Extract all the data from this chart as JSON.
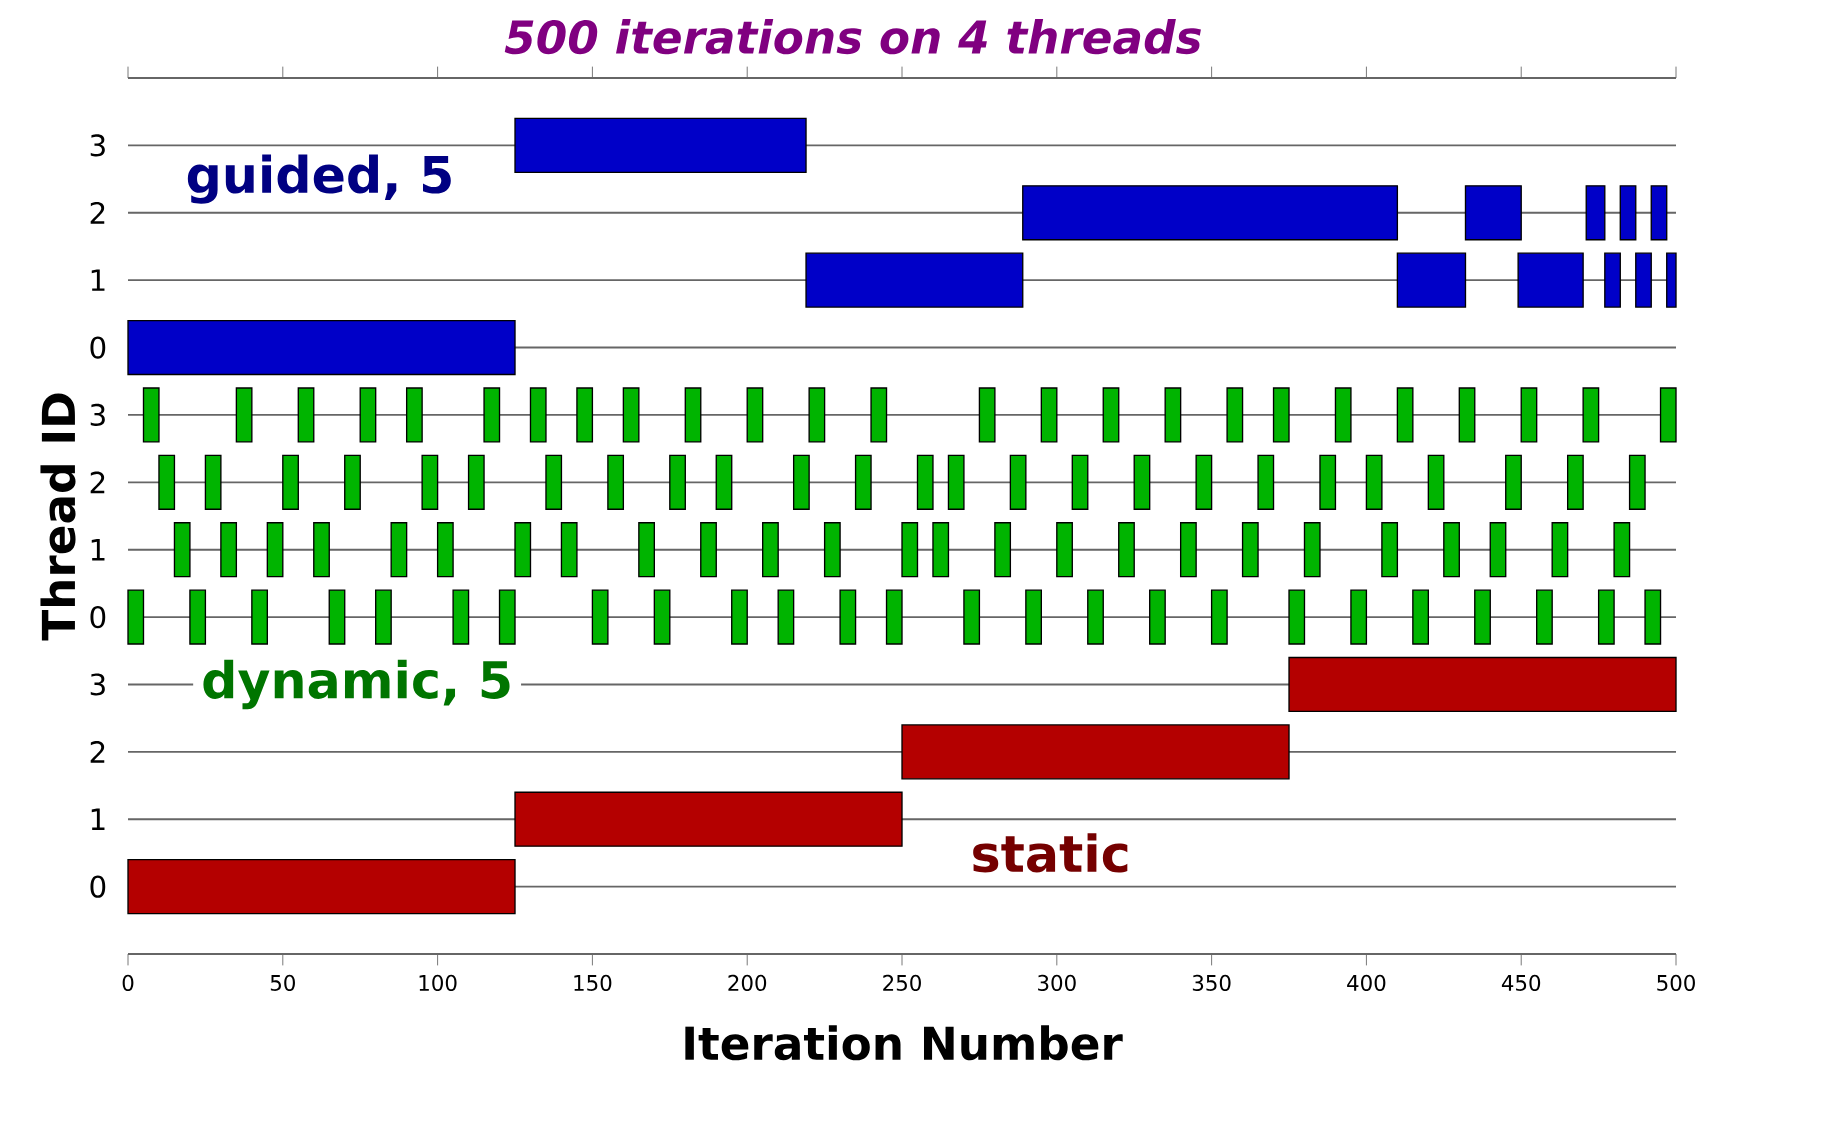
{
  "chart_data": {
    "type": "bar",
    "orientation": "horizontal",
    "title": "500 iterations on 4 threads",
    "xlabel": "Iteration Number",
    "ylabel": "Thread ID",
    "categories": [
      "3",
      "2",
      "1",
      "0",
      "3",
      "2",
      "1",
      "0",
      "3",
      "2",
      "1",
      "0"
    ],
    "annotations": [
      "guided, 5",
      "dynamic, 5",
      "static"
    ],
    "xlim": [
      0,
      500
    ],
    "xticks": [
      0,
      50,
      100,
      150,
      200,
      250,
      300,
      350,
      400,
      450,
      500
    ],
    "grid": "y",
    "series": [
      {
        "colors": [
          "#0000c8",
          "#0000c8",
          "#0000c8",
          "#0000c8",
          "#00b400",
          "#00b400",
          "#00b400",
          "#00b400",
          "#b40000",
          "#b40000",
          "#b40000",
          "#b40000"
        ],
        "base": [
          125,
          289,
          219,
          0,
          5,
          10,
          15,
          0,
          375,
          250,
          125,
          0
        ],
        "values": [
          94,
          121,
          70,
          125,
          5,
          5,
          5,
          5,
          125,
          125,
          125,
          125
        ]
      },
      {
        "colors": [
          "#0000c8",
          "#0000c8",
          "#0000c8",
          "#0000c8",
          "#00b400",
          "#00b400",
          "#00b400",
          "#00b400",
          "#b40000",
          "#b40000",
          "#b40000",
          "#b40000"
        ],
        "base": [
          null,
          432,
          410,
          null,
          35,
          25,
          30,
          20,
          null,
          null,
          null,
          null
        ],
        "values": [
          null,
          18,
          22,
          null,
          5,
          5,
          5,
          5,
          null,
          null,
          null,
          null
        ]
      },
      {
        "colors": [
          "#0000c8",
          "#0000c8",
          "#0000c8",
          "#0000c8",
          "#00b400",
          "#00b400",
          "#00b400",
          "#00b400",
          "#b40000",
          "#b40000",
          "#b40000",
          "#b40000"
        ],
        "base": [
          null,
          471,
          449,
          null,
          55,
          50,
          45,
          40,
          null,
          null,
          null,
          null
        ],
        "values": [
          null,
          6,
          21,
          null,
          5,
          5,
          5,
          5,
          null,
          null,
          null,
          null
        ]
      },
      {
        "colors": [
          "#0000c8",
          "#0000c8",
          "#0000c8",
          "#0000c8",
          "#00b400",
          "#00b400",
          "#00b400",
          "#00b400",
          "#b40000",
          "#b40000",
          "#b40000",
          "#b40000"
        ],
        "base": [
          null,
          482,
          477,
          null,
          75,
          70,
          60,
          65,
          null,
          null,
          null,
          null
        ],
        "values": [
          null,
          5,
          5,
          null,
          5,
          5,
          5,
          5,
          null,
          null,
          null,
          null
        ]
      },
      {
        "colors": [
          "#0000c8",
          "#0000c8",
          "#0000c8",
          "#0000c8",
          "#00b400",
          "#00b400",
          "#00b400",
          "#00b400",
          "#b40000",
          "#b40000",
          "#b40000",
          "#b40000"
        ],
        "base": [
          null,
          492,
          487,
          null,
          90,
          95,
          85,
          80,
          null,
          null,
          null,
          null
        ],
        "values": [
          null,
          5,
          5,
          null,
          5,
          5,
          5,
          5,
          null,
          null,
          null,
          null
        ]
      },
      {
        "colors": [
          "#0000c8",
          "#0000c8",
          "#0000c8",
          "#0000c8",
          "#00b400",
          "#00b400",
          "#00b400",
          "#00b400",
          "#b40000",
          "#b40000",
          "#b40000",
          "#b40000"
        ],
        "base": [
          null,
          null,
          497,
          null,
          115,
          110,
          100,
          105,
          null,
          null,
          null,
          null
        ],
        "values": [
          null,
          null,
          3,
          null,
          5,
          5,
          5,
          5,
          null,
          null,
          null,
          null
        ]
      },
      {
        "colors": [
          "#0000c8",
          "#0000c8",
          "#0000c8",
          "#0000c8",
          "#00b400",
          "#00b400",
          "#00b400",
          "#00b400",
          "#b40000",
          "#b40000",
          "#b40000",
          "#b40000"
        ],
        "base": [
          null,
          null,
          null,
          null,
          130,
          135,
          125,
          120,
          null,
          null,
          null,
          null
        ],
        "values": [
          null,
          null,
          null,
          null,
          5,
          5,
          5,
          5,
          null,
          null,
          null,
          null
        ]
      },
      {
        "colors": [
          "#0000c8",
          "#0000c8",
          "#0000c8",
          "#0000c8",
          "#00b400",
          "#00b400",
          "#00b400",
          "#00b400",
          "#b40000",
          "#b40000",
          "#b40000",
          "#b40000"
        ],
        "base": [
          null,
          null,
          null,
          null,
          145,
          155,
          140,
          150,
          null,
          null,
          null,
          null
        ],
        "values": [
          null,
          null,
          null,
          null,
          5,
          5,
          5,
          5,
          null,
          null,
          null,
          null
        ]
      },
      {
        "colors": [
          "#0000c8",
          "#0000c8",
          "#0000c8",
          "#0000c8",
          "#00b400",
          "#00b400",
          "#00b400",
          "#00b400",
          "#b40000",
          "#b40000",
          "#b40000",
          "#b40000"
        ],
        "base": [
          null,
          null,
          null,
          null,
          160,
          175,
          165,
          170,
          null,
          null,
          null,
          null
        ],
        "values": [
          null,
          null,
          null,
          null,
          5,
          5,
          5,
          5,
          null,
          null,
          null,
          null
        ]
      },
      {
        "colors": [
          "#0000c8",
          "#0000c8",
          "#0000c8",
          "#0000c8",
          "#00b400",
          "#00b400",
          "#00b400",
          "#00b400",
          "#b40000",
          "#b40000",
          "#b40000",
          "#b40000"
        ],
        "base": [
          null,
          null,
          null,
          null,
          180,
          190,
          185,
          195,
          null,
          null,
          null,
          null
        ],
        "values": [
          null,
          null,
          null,
          null,
          5,
          5,
          5,
          5,
          null,
          null,
          null,
          null
        ]
      },
      {
        "colors": [
          "#0000c8",
          "#0000c8",
          "#0000c8",
          "#0000c8",
          "#00b400",
          "#00b400",
          "#00b400",
          "#00b400",
          "#b40000",
          "#b40000",
          "#b40000",
          "#b40000"
        ],
        "base": [
          null,
          null,
          null,
          null,
          200,
          215,
          205,
          210,
          null,
          null,
          null,
          null
        ],
        "values": [
          null,
          null,
          null,
          null,
          5,
          5,
          5,
          5,
          null,
          null,
          null,
          null
        ]
      },
      {
        "colors": [
          "#0000c8",
          "#0000c8",
          "#0000c8",
          "#0000c8",
          "#00b400",
          "#00b400",
          "#00b400",
          "#00b400",
          "#b40000",
          "#b40000",
          "#b40000",
          "#b40000"
        ],
        "base": [
          null,
          null,
          null,
          null,
          220,
          235,
          225,
          230,
          null,
          null,
          null,
          null
        ],
        "values": [
          null,
          null,
          null,
          null,
          5,
          5,
          5,
          5,
          null,
          null,
          null,
          null
        ]
      },
      {
        "colors": [
          "#0000c8",
          "#0000c8",
          "#0000c8",
          "#0000c8",
          "#00b400",
          "#00b400",
          "#00b400",
          "#00b400",
          "#b40000",
          "#b40000",
          "#b40000",
          "#b40000"
        ],
        "base": [
          null,
          null,
          null,
          null,
          240,
          255,
          250,
          245,
          null,
          null,
          null,
          null
        ],
        "values": [
          null,
          null,
          null,
          null,
          5,
          5,
          5,
          5,
          null,
          null,
          null,
          null
        ]
      },
      {
        "colors": [
          "#0000c8",
          "#0000c8",
          "#0000c8",
          "#0000c8",
          "#00b400",
          "#00b400",
          "#00b400",
          "#00b400",
          "#b40000",
          "#b40000",
          "#b40000",
          "#b40000"
        ],
        "base": [
          null,
          null,
          null,
          null,
          275,
          265,
          260,
          270,
          null,
          null,
          null,
          null
        ],
        "values": [
          null,
          null,
          null,
          null,
          5,
          5,
          5,
          5,
          null,
          null,
          null,
          null
        ]
      },
      {
        "colors": [
          "#0000c8",
          "#0000c8",
          "#0000c8",
          "#0000c8",
          "#00b400",
          "#00b400",
          "#00b400",
          "#00b400",
          "#b40000",
          "#b40000",
          "#b40000",
          "#b40000"
        ],
        "base": [
          null,
          null,
          null,
          null,
          295,
          285,
          280,
          290,
          null,
          null,
          null,
          null
        ],
        "values": [
          null,
          null,
          null,
          null,
          5,
          5,
          5,
          5,
          null,
          null,
          null,
          null
        ]
      },
      {
        "colors": [
          "#0000c8",
          "#0000c8",
          "#0000c8",
          "#0000c8",
          "#00b400",
          "#00b400",
          "#00b400",
          "#00b400",
          "#b40000",
          "#b40000",
          "#b40000",
          "#b40000"
        ],
        "base": [
          null,
          null,
          null,
          null,
          315,
          305,
          300,
          310,
          null,
          null,
          null,
          null
        ],
        "values": [
          null,
          null,
          null,
          null,
          5,
          5,
          5,
          5,
          null,
          null,
          null,
          null
        ]
      },
      {
        "colors": [
          "#0000c8",
          "#0000c8",
          "#0000c8",
          "#0000c8",
          "#00b400",
          "#00b400",
          "#00b400",
          "#00b400",
          "#b40000",
          "#b40000",
          "#b40000",
          "#b40000"
        ],
        "base": [
          null,
          null,
          null,
          null,
          335,
          325,
          320,
          330,
          null,
          null,
          null,
          null
        ],
        "values": [
          null,
          null,
          null,
          null,
          5,
          5,
          5,
          5,
          null,
          null,
          null,
          null
        ]
      },
      {
        "colors": [
          "#0000c8",
          "#0000c8",
          "#0000c8",
          "#0000c8",
          "#00b400",
          "#00b400",
          "#00b400",
          "#00b400",
          "#b40000",
          "#b40000",
          "#b40000",
          "#b40000"
        ],
        "base": [
          null,
          null,
          null,
          null,
          355,
          345,
          340,
          350,
          null,
          null,
          null,
          null
        ],
        "values": [
          null,
          null,
          null,
          null,
          5,
          5,
          5,
          5,
          null,
          null,
          null,
          null
        ]
      },
      {
        "colors": [
          "#0000c8",
          "#0000c8",
          "#0000c8",
          "#0000c8",
          "#00b400",
          "#00b400",
          "#00b400",
          "#00b400",
          "#b40000",
          "#b40000",
          "#b40000",
          "#b40000"
        ],
        "base": [
          null,
          null,
          null,
          null,
          370,
          365,
          360,
          375,
          null,
          null,
          null,
          null
        ],
        "values": [
          null,
          null,
          null,
          null,
          5,
          5,
          5,
          5,
          null,
          null,
          null,
          null
        ]
      },
      {
        "colors": [
          "#0000c8",
          "#0000c8",
          "#0000c8",
          "#0000c8",
          "#00b400",
          "#00b400",
          "#00b400",
          "#00b400",
          "#b40000",
          "#b40000",
          "#b40000",
          "#b40000"
        ],
        "base": [
          null,
          null,
          null,
          null,
          390,
          385,
          380,
          395,
          null,
          null,
          null,
          null
        ],
        "values": [
          null,
          null,
          null,
          null,
          5,
          5,
          5,
          5,
          null,
          null,
          null,
          null
        ]
      },
      {
        "colors": [
          "#0000c8",
          "#0000c8",
          "#0000c8",
          "#0000c8",
          "#00b400",
          "#00b400",
          "#00b400",
          "#00b400",
          "#b40000",
          "#b40000",
          "#b40000",
          "#b40000"
        ],
        "base": [
          null,
          null,
          null,
          null,
          410,
          400,
          405,
          415,
          null,
          null,
          null,
          null
        ],
        "values": [
          null,
          null,
          null,
          null,
          5,
          5,
          5,
          5,
          null,
          null,
          null,
          null
        ]
      },
      {
        "colors": [
          "#0000c8",
          "#0000c8",
          "#0000c8",
          "#0000c8",
          "#00b400",
          "#00b400",
          "#00b400",
          "#00b400",
          "#b40000",
          "#b40000",
          "#b40000",
          "#b40000"
        ],
        "base": [
          null,
          null,
          null,
          null,
          430,
          420,
          425,
          435,
          null,
          null,
          null,
          null
        ],
        "values": [
          null,
          null,
          null,
          null,
          5,
          5,
          5,
          5,
          null,
          null,
          null,
          null
        ]
      },
      {
        "colors": [
          "#0000c8",
          "#0000c8",
          "#0000c8",
          "#0000c8",
          "#00b400",
          "#00b400",
          "#00b400",
          "#00b400",
          "#b40000",
          "#b40000",
          "#b40000",
          "#b40000"
        ],
        "base": [
          null,
          null,
          null,
          null,
          450,
          445,
          440,
          455,
          null,
          null,
          null,
          null
        ],
        "values": [
          null,
          null,
          null,
          null,
          5,
          5,
          5,
          5,
          null,
          null,
          null,
          null
        ]
      },
      {
        "colors": [
          "#0000c8",
          "#0000c8",
          "#0000c8",
          "#0000c8",
          "#00b400",
          "#00b400",
          "#00b400",
          "#00b400",
          "#b40000",
          "#b40000",
          "#b40000",
          "#b40000"
        ],
        "base": [
          null,
          null,
          null,
          null,
          470,
          465,
          460,
          475,
          null,
          null,
          null,
          null
        ],
        "values": [
          null,
          null,
          null,
          null,
          5,
          5,
          5,
          5,
          null,
          null,
          null,
          null
        ]
      },
      {
        "colors": [
          "#0000c8",
          "#0000c8",
          "#0000c8",
          "#0000c8",
          "#00b400",
          "#00b400",
          "#00b400",
          "#00b400",
          "#b40000",
          "#b40000",
          "#b40000",
          "#b40000"
        ],
        "base": [
          null,
          null,
          null,
          null,
          495,
          485,
          480,
          490,
          null,
          null,
          null,
          null
        ],
        "values": [
          null,
          null,
          null,
          null,
          5,
          5,
          5,
          5,
          null,
          null,
          null,
          null
        ]
      }
    ]
  }
}
